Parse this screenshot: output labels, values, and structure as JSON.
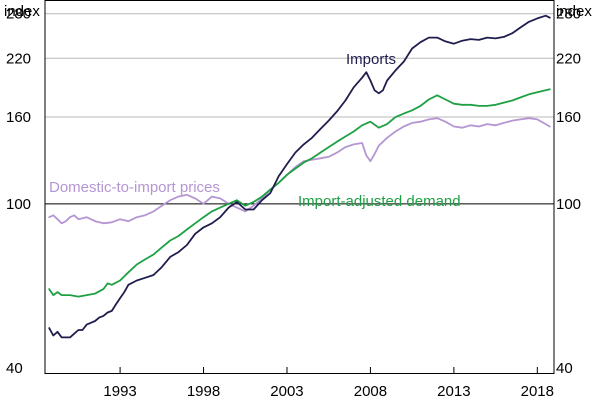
{
  "chart_data": {
    "type": "line",
    "y_scale": "log",
    "ylim": [
      40,
      300
    ],
    "xlim": [
      1989.0,
      2019.5
    ],
    "units": {
      "left": "index",
      "right": "index"
    },
    "y_ticks": [
      40,
      100,
      160,
      220,
      280
    ],
    "y_tick_labels": [
      "40",
      "100",
      "160",
      "220",
      "280"
    ],
    "x_ticks": [
      1993,
      1998,
      2003,
      2008,
      2013,
      2018
    ],
    "x_tick_labels": [
      "1993",
      "1998",
      "2003",
      "2008",
      "2013",
      "2018"
    ],
    "reference_line": 100,
    "series": [
      {
        "name": "Imports",
        "label": "Imports",
        "color": "#1f1d4d",
        "points": [
          [
            1989.25,
            51
          ],
          [
            1989.5,
            49
          ],
          [
            1989.75,
            50
          ],
          [
            1990.0,
            48.5
          ],
          [
            1990.25,
            48.5
          ],
          [
            1990.5,
            48.5
          ],
          [
            1990.75,
            49.5
          ],
          [
            1991.0,
            50.5
          ],
          [
            1991.25,
            50.5
          ],
          [
            1991.5,
            52
          ],
          [
            1991.75,
            52.5
          ],
          [
            1992.0,
            53
          ],
          [
            1992.25,
            54
          ],
          [
            1992.5,
            54.5
          ],
          [
            1992.75,
            55.5
          ],
          [
            1993.0,
            56
          ],
          [
            1993.25,
            58
          ],
          [
            1993.5,
            60
          ],
          [
            1993.75,
            62
          ],
          [
            1994.0,
            64.5
          ],
          [
            1994.5,
            66
          ],
          [
            1995.0,
            67
          ],
          [
            1995.5,
            68
          ],
          [
            1996.0,
            71
          ],
          [
            1996.5,
            75
          ],
          [
            1997.0,
            77
          ],
          [
            1997.5,
            80
          ],
          [
            1998.0,
            85
          ],
          [
            1998.5,
            88
          ],
          [
            1999.0,
            90
          ],
          [
            1999.5,
            93
          ],
          [
            2000.0,
            98
          ],
          [
            2000.5,
            101
          ],
          [
            2001.0,
            97
          ],
          [
            2001.5,
            97
          ],
          [
            2002.0,
            102
          ],
          [
            2002.5,
            106
          ],
          [
            2003.0,
            116
          ],
          [
            2003.5,
            124
          ],
          [
            2004.0,
            132
          ],
          [
            2004.5,
            138
          ],
          [
            2005.0,
            143
          ],
          [
            2005.5,
            150
          ],
          [
            2006.0,
            157
          ],
          [
            2006.5,
            165
          ],
          [
            2007.0,
            175
          ],
          [
            2007.5,
            188
          ],
          [
            2008.0,
            198
          ],
          [
            2008.25,
            204
          ],
          [
            2008.5,
            195
          ],
          [
            2008.75,
            185
          ],
          [
            2009.0,
            182
          ],
          [
            2009.25,
            185
          ],
          [
            2009.5,
            195
          ],
          [
            2010.0,
            206
          ],
          [
            2010.5,
            216
          ],
          [
            2011.0,
            232
          ],
          [
            2011.5,
            240
          ],
          [
            2012.0,
            246
          ],
          [
            2012.5,
            246
          ],
          [
            2013.0,
            241
          ],
          [
            2013.5,
            238
          ],
          [
            2014.0,
            242
          ],
          [
            2014.5,
            244
          ],
          [
            2015.0,
            243
          ],
          [
            2015.5,
            246
          ],
          [
            2016.0,
            245
          ],
          [
            2016.5,
            247
          ],
          [
            2017.0,
            252
          ],
          [
            2017.5,
            260
          ],
          [
            2018.0,
            268
          ],
          [
            2018.5,
            273
          ],
          [
            2019.0,
            277
          ],
          [
            2019.25,
            274
          ]
        ]
      },
      {
        "name": "Import-adjusted demand",
        "label": "Import-adjusted demand",
        "color": "#1ea044",
        "points": [
          [
            1989.25,
            63
          ],
          [
            1989.5,
            61
          ],
          [
            1989.75,
            62
          ],
          [
            1990.0,
            61
          ],
          [
            1990.5,
            61
          ],
          [
            1991.0,
            60.5
          ],
          [
            1991.5,
            61
          ],
          [
            1992.0,
            61.5
          ],
          [
            1992.5,
            63
          ],
          [
            1992.75,
            65
          ],
          [
            1993.0,
            64.5
          ],
          [
            1993.5,
            66
          ],
          [
            1994.0,
            69
          ],
          [
            1994.5,
            72
          ],
          [
            1995.0,
            74
          ],
          [
            1995.5,
            76
          ],
          [
            1996.0,
            79
          ],
          [
            1996.5,
            82
          ],
          [
            1997.0,
            84
          ],
          [
            1997.5,
            87
          ],
          [
            1998.0,
            90
          ],
          [
            1998.5,
            93
          ],
          [
            1999.0,
            96
          ],
          [
            1999.5,
            98
          ],
          [
            2000.0,
            100
          ],
          [
            2000.5,
            102
          ],
          [
            2001.0,
            99
          ],
          [
            2001.5,
            101
          ],
          [
            2002.0,
            104
          ],
          [
            2002.5,
            108
          ],
          [
            2003.0,
            112
          ],
          [
            2003.5,
            117
          ],
          [
            2004.0,
            121
          ],
          [
            2004.5,
            125
          ],
          [
            2005.0,
            128
          ],
          [
            2005.5,
            132
          ],
          [
            2006.0,
            136
          ],
          [
            2006.5,
            140
          ],
          [
            2007.0,
            144
          ],
          [
            2007.5,
            148
          ],
          [
            2008.0,
            153
          ],
          [
            2008.5,
            156
          ],
          [
            2009.0,
            151
          ],
          [
            2009.5,
            154
          ],
          [
            2010.0,
            160
          ],
          [
            2010.5,
            163
          ],
          [
            2011.0,
            166
          ],
          [
            2011.5,
            170
          ],
          [
            2012.0,
            176
          ],
          [
            2012.5,
            180
          ],
          [
            2013.0,
            176
          ],
          [
            2013.5,
            172
          ],
          [
            2014.0,
            171
          ],
          [
            2014.5,
            171
          ],
          [
            2015.0,
            170
          ],
          [
            2015.5,
            170
          ],
          [
            2016.0,
            171
          ],
          [
            2016.5,
            173
          ],
          [
            2017.0,
            175
          ],
          [
            2017.5,
            178
          ],
          [
            2018.0,
            181
          ],
          [
            2018.5,
            183
          ],
          [
            2019.0,
            185
          ],
          [
            2019.25,
            186
          ]
        ]
      },
      {
        "name": "Domestic-to-import prices",
        "label": "Domestic-to-import prices",
        "color": "#b596d3",
        "points": [
          [
            1989.25,
            93
          ],
          [
            1989.5,
            94
          ],
          [
            1989.75,
            92
          ],
          [
            1990.0,
            90
          ],
          [
            1990.25,
            91
          ],
          [
            1990.5,
            93
          ],
          [
            1990.75,
            94
          ],
          [
            1991.0,
            92
          ],
          [
            1991.5,
            93
          ],
          [
            1992.0,
            91
          ],
          [
            1992.5,
            90
          ],
          [
            1993.0,
            90.5
          ],
          [
            1993.5,
            92
          ],
          [
            1994.0,
            91
          ],
          [
            1994.5,
            93
          ],
          [
            1995.0,
            94
          ],
          [
            1995.5,
            96
          ],
          [
            1996.0,
            99
          ],
          [
            1996.5,
            102
          ],
          [
            1997.0,
            104
          ],
          [
            1997.5,
            105
          ],
          [
            1998.0,
            103
          ],
          [
            1998.5,
            100
          ],
          [
            1999.0,
            104
          ],
          [
            1999.5,
            103
          ],
          [
            2000.0,
            100
          ],
          [
            2000.5,
            98
          ],
          [
            2001.0,
            96
          ],
          [
            2001.5,
            99
          ],
          [
            2002.0,
            103
          ],
          [
            2002.5,
            108
          ],
          [
            2003.0,
            112
          ],
          [
            2003.5,
            117
          ],
          [
            2004.0,
            122
          ],
          [
            2004.5,
            126
          ],
          [
            2005.0,
            127
          ],
          [
            2005.5,
            128
          ],
          [
            2006.0,
            129
          ],
          [
            2006.5,
            132
          ],
          [
            2007.0,
            136
          ],
          [
            2007.5,
            138
          ],
          [
            2008.0,
            139
          ],
          [
            2008.25,
            130
          ],
          [
            2008.5,
            126
          ],
          [
            2008.75,
            131
          ],
          [
            2009.0,
            137
          ],
          [
            2009.5,
            143
          ],
          [
            2010.0,
            148
          ],
          [
            2010.5,
            152
          ],
          [
            2011.0,
            155
          ],
          [
            2011.5,
            156
          ],
          [
            2012.0,
            158
          ],
          [
            2012.5,
            159
          ],
          [
            2013.0,
            156
          ],
          [
            2013.5,
            152
          ],
          [
            2014.0,
            151
          ],
          [
            2014.5,
            153
          ],
          [
            2015.0,
            152
          ],
          [
            2015.5,
            154
          ],
          [
            2016.0,
            153
          ],
          [
            2016.5,
            155
          ],
          [
            2017.0,
            157
          ],
          [
            2017.5,
            158
          ],
          [
            2018.0,
            159
          ],
          [
            2018.5,
            158
          ],
          [
            2019.0,
            154
          ],
          [
            2019.25,
            152
          ]
        ]
      }
    ]
  }
}
